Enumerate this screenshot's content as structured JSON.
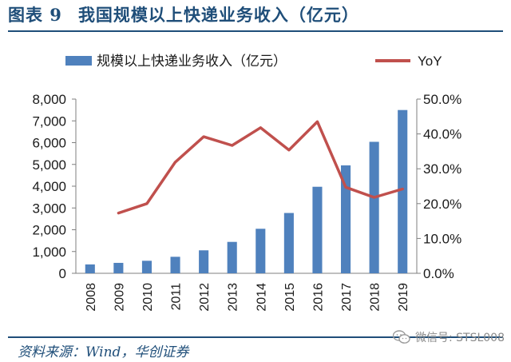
{
  "figure": {
    "number": "图表 9",
    "title": "我国规模以上快递业务收入（亿元）"
  },
  "source_text": "资料来源：Wind，华创证券",
  "watermark_text": "微信号: STSL008",
  "chart_data": {
    "type": "bar",
    "categories": [
      "2008",
      "2009",
      "2010",
      "2011",
      "2012",
      "2013",
      "2014",
      "2015",
      "2016",
      "2017",
      "2018",
      "2019"
    ],
    "series": [
      {
        "name": "规模以上快递业务收入（亿元）",
        "type": "bar",
        "axis": "left",
        "color": "#4f81bd",
        "values": [
          408,
          479,
          575,
          758,
          1055,
          1442,
          2045,
          2770,
          3974,
          4957,
          6038,
          7498
        ]
      },
      {
        "name": "YoY",
        "type": "line",
        "axis": "right",
        "color": "#c0504d",
        "values": [
          null,
          17.3,
          20.0,
          31.9,
          39.2,
          36.7,
          41.8,
          35.4,
          43.5,
          24.7,
          21.8,
          24.2
        ]
      }
    ],
    "y_left": {
      "ylim": [
        0,
        8000
      ],
      "ticks": [
        "0",
        "1,000",
        "2,000",
        "3,000",
        "4,000",
        "5,000",
        "6,000",
        "7,000",
        "8,000"
      ]
    },
    "y_right": {
      "ylim": [
        0,
        50
      ],
      "ticks": [
        "0.0%",
        "10.0%",
        "20.0%",
        "30.0%",
        "40.0%",
        "50.0%"
      ]
    },
    "grid": false,
    "legend_position": "top"
  }
}
